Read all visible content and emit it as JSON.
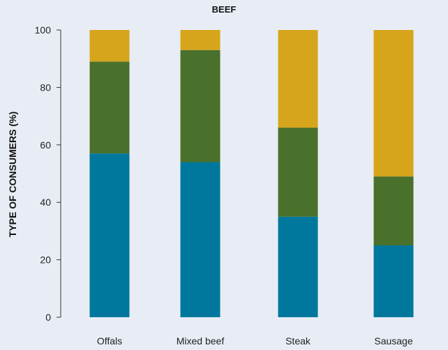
{
  "chart_data": {
    "type": "bar",
    "stacked": true,
    "title": "BEEF",
    "xlabel": "",
    "ylabel": "TYPE OF CONSUMERS (%)",
    "ylim": [
      0,
      100
    ],
    "yticks": [
      0,
      20,
      40,
      60,
      80,
      100
    ],
    "grid": false,
    "legend": "none",
    "categories": [
      "Offals",
      "Mixed beef",
      "Steak",
      "Sausage"
    ],
    "series": [
      {
        "values": [
          57,
          54,
          35,
          25
        ],
        "color": "#00789d"
      },
      {
        "values": [
          32,
          39,
          31,
          24
        ],
        "color": "#4a712c"
      },
      {
        "values": [
          11,
          7,
          34,
          51
        ],
        "color": "#d6a51c"
      }
    ]
  },
  "colors": {
    "background": "#e8edf5",
    "axis": "#333333"
  }
}
